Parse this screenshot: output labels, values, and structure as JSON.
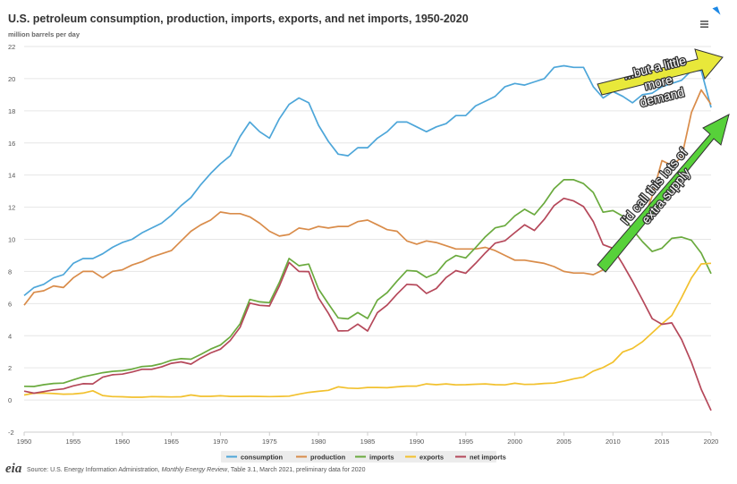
{
  "chart_data": {
    "type": "line",
    "title": "U.S. petroleum consumption, production, imports, exports, and net imports, 1950-2020",
    "subtitle": "million barrels per day",
    "xlabel": "",
    "ylabel": "",
    "x": [
      1950,
      1951,
      1952,
      1953,
      1954,
      1955,
      1956,
      1957,
      1958,
      1959,
      1960,
      1961,
      1962,
      1963,
      1964,
      1965,
      1966,
      1967,
      1968,
      1969,
      1970,
      1971,
      1972,
      1973,
      1974,
      1975,
      1976,
      1977,
      1978,
      1979,
      1980,
      1981,
      1982,
      1983,
      1984,
      1985,
      1986,
      1987,
      1988,
      1989,
      1990,
      1991,
      1992,
      1993,
      1994,
      1995,
      1996,
      1997,
      1998,
      1999,
      2000,
      2001,
      2002,
      2003,
      2004,
      2005,
      2006,
      2007,
      2008,
      2009,
      2010,
      2011,
      2012,
      2013,
      2014,
      2015,
      2016,
      2017,
      2018,
      2019,
      2020
    ],
    "xlim": [
      1950,
      2020
    ],
    "ylim": [
      -2,
      22
    ],
    "x_ticks": [
      "1950",
      "1955",
      "1960",
      "1965",
      "1970",
      "1975",
      "1980",
      "1985",
      "1990",
      "1995",
      "2000",
      "2005",
      "2010",
      "2015",
      "2020"
    ],
    "y_ticks": [
      "-2",
      "0",
      "2",
      "4",
      "6",
      "8",
      "10",
      "12",
      "14",
      "16",
      "18",
      "20",
      "22"
    ],
    "grid": true,
    "legend_position": "bottom",
    "series": [
      {
        "name": "consumption",
        "color": "#4da6d9",
        "values": [
          6.5,
          7.0,
          7.2,
          7.6,
          7.8,
          8.5,
          8.8,
          8.8,
          9.1,
          9.5,
          9.8,
          10.0,
          10.4,
          10.7,
          11.0,
          11.5,
          12.1,
          12.6,
          13.4,
          14.1,
          14.7,
          15.2,
          16.4,
          17.3,
          16.7,
          16.3,
          17.5,
          18.4,
          18.8,
          18.5,
          17.1,
          16.1,
          15.3,
          15.2,
          15.7,
          15.7,
          16.3,
          16.7,
          17.3,
          17.3,
          17.0,
          16.7,
          17.0,
          17.2,
          17.7,
          17.7,
          18.3,
          18.6,
          18.9,
          19.5,
          19.7,
          19.6,
          19.8,
          20.0,
          20.7,
          20.8,
          20.7,
          20.7,
          19.5,
          18.8,
          19.2,
          18.9,
          18.5,
          19.0,
          19.1,
          19.5,
          19.7,
          19.9,
          20.5,
          20.5,
          18.2
        ]
      },
      {
        "name": "production",
        "color": "#d98c4a",
        "values": [
          5.9,
          6.7,
          6.8,
          7.1,
          7.0,
          7.6,
          8.0,
          8.0,
          7.6,
          8.0,
          8.1,
          8.4,
          8.6,
          8.9,
          9.1,
          9.3,
          9.9,
          10.5,
          10.9,
          11.2,
          11.7,
          11.6,
          11.6,
          11.4,
          11.0,
          10.5,
          10.2,
          10.3,
          10.7,
          10.6,
          10.8,
          10.7,
          10.8,
          10.8,
          11.1,
          11.2,
          10.9,
          10.6,
          10.5,
          9.9,
          9.7,
          9.9,
          9.8,
          9.6,
          9.4,
          9.4,
          9.4,
          9.5,
          9.3,
          9.0,
          8.7,
          8.7,
          8.6,
          8.5,
          8.3,
          8.0,
          7.9,
          7.9,
          7.8,
          8.1,
          9.1,
          9.8,
          10.5,
          11.0,
          12.7,
          14.9,
          14.6,
          15.1,
          17.9,
          19.3,
          18.4
        ]
      },
      {
        "name": "imports",
        "color": "#6aaa3e",
        "values": [
          0.85,
          0.84,
          0.95,
          1.03,
          1.05,
          1.25,
          1.44,
          1.57,
          1.7,
          1.78,
          1.82,
          1.92,
          2.08,
          2.12,
          2.26,
          2.47,
          2.57,
          2.54,
          2.84,
          3.17,
          3.42,
          3.93,
          4.74,
          6.26,
          6.11,
          6.06,
          7.31,
          8.81,
          8.36,
          8.46,
          6.91,
          5.99,
          5.11,
          5.05,
          5.44,
          5.07,
          6.22,
          6.68,
          7.4,
          8.06,
          8.02,
          7.63,
          7.89,
          8.62,
          8.99,
          8.84,
          9.48,
          10.16,
          10.71,
          10.85,
          11.46,
          11.87,
          11.53,
          12.26,
          13.15,
          13.71,
          13.71,
          13.47,
          12.92,
          11.69,
          11.79,
          11.44,
          10.6,
          9.86,
          9.24,
          9.45,
          10.06,
          10.14,
          9.94,
          9.14,
          7.86
        ]
      },
      {
        "name": "exports",
        "color": "#f2c12e",
        "values": [
          0.31,
          0.42,
          0.43,
          0.4,
          0.36,
          0.37,
          0.43,
          0.57,
          0.28,
          0.21,
          0.2,
          0.17,
          0.17,
          0.21,
          0.2,
          0.19,
          0.2,
          0.31,
          0.23,
          0.23,
          0.26,
          0.22,
          0.22,
          0.23,
          0.22,
          0.21,
          0.22,
          0.24,
          0.36,
          0.47,
          0.54,
          0.6,
          0.82,
          0.74,
          0.72,
          0.78,
          0.78,
          0.76,
          0.82,
          0.86,
          0.86,
          1.0,
          0.95,
          1.0,
          0.94,
          0.95,
          0.98,
          1.0,
          0.95,
          0.94,
          1.04,
          0.97,
          0.98,
          1.03,
          1.05,
          1.17,
          1.32,
          1.43,
          1.8,
          2.02,
          2.35,
          2.99,
          3.21,
          3.62,
          4.18,
          4.74,
          5.26,
          6.38,
          7.6,
          8.47,
          8.51
        ]
      },
      {
        "name": "net imports",
        "color": "#b5485a",
        "values": [
          0.55,
          0.42,
          0.52,
          0.63,
          0.69,
          0.88,
          1.01,
          1.0,
          1.42,
          1.57,
          1.61,
          1.74,
          1.91,
          1.91,
          2.06,
          2.28,
          2.37,
          2.23,
          2.61,
          2.93,
          3.16,
          3.7,
          4.52,
          6.03,
          5.89,
          5.85,
          7.09,
          8.56,
          8.0,
          7.99,
          6.36,
          5.4,
          4.3,
          4.31,
          4.72,
          4.29,
          5.44,
          5.91,
          6.59,
          7.2,
          7.16,
          6.63,
          6.94,
          7.62,
          8.05,
          7.89,
          8.5,
          9.16,
          9.76,
          9.91,
          10.42,
          10.9,
          10.55,
          11.24,
          12.1,
          12.55,
          12.39,
          12.04,
          11.11,
          9.67,
          9.44,
          8.45,
          7.39,
          6.24,
          5.06,
          4.71,
          4.8,
          3.76,
          2.34,
          0.67,
          -0.65
        ]
      }
    ]
  },
  "legend": [
    {
      "label": "consumption",
      "color": "#4da6d9"
    },
    {
      "label": "production",
      "color": "#d98c4a"
    },
    {
      "label": "imports",
      "color": "#6aaa3e"
    },
    {
      "label": "exports",
      "color": "#f2c12e"
    },
    {
      "label": "net imports",
      "color": "#b5485a"
    }
  ],
  "annotations": {
    "demand_lines": [
      "...but a little",
      "more",
      "demand"
    ],
    "supply_lines": [
      "I'd call this lots of",
      "extra supply"
    ],
    "yellow_arrow_color": "#e8e83a",
    "green_arrow_color": "#57d13a"
  },
  "menu_icon": "hamburger-menu-icon",
  "footer": {
    "logo_text": "eia",
    "source_prefix": "Source: U.S. Energy Information Administration, ",
    "source_italic": "Monthly Energy Review",
    "source_suffix": ", Table 3.1, March 2021, preliminary data for 2020"
  }
}
